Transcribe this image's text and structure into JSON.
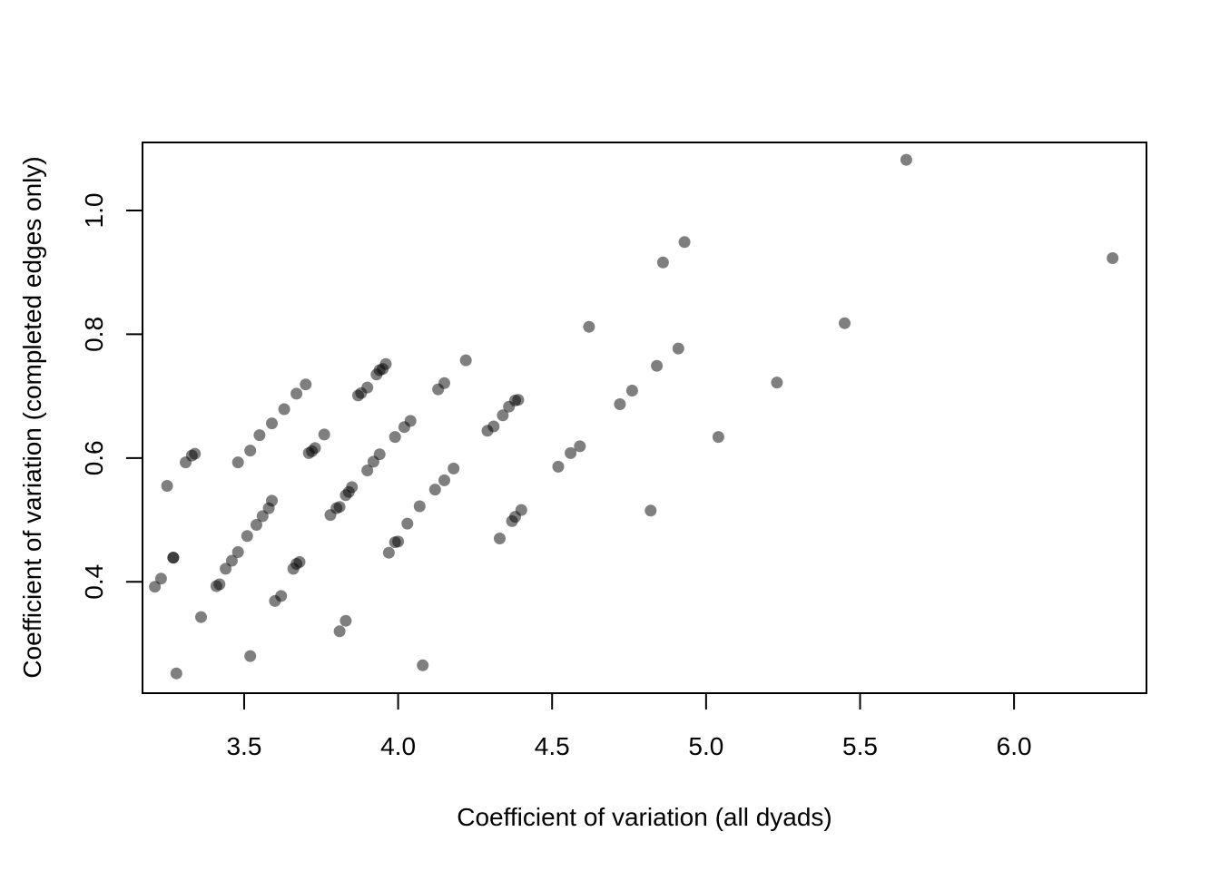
{
  "chart_data": {
    "type": "scatter",
    "title": "",
    "xlabel": "Coefficient of variation (all dyads)",
    "ylabel": "Coefficient of variation (completed edges only)",
    "xlim": [
      3.17,
      6.43
    ],
    "ylim": [
      0.22,
      1.11
    ],
    "x_ticks": [
      3.5,
      4.0,
      4.5,
      5.0,
      5.5,
      6.0
    ],
    "x_tick_labels": [
      "3.5",
      "4.0",
      "4.5",
      "5.0",
      "5.5",
      "6.0"
    ],
    "y_ticks": [
      0.4,
      0.6,
      0.8,
      1.0
    ],
    "y_tick_labels": [
      "0.4",
      "0.6",
      "0.8",
      "1.0"
    ],
    "grid": false,
    "legend": "none",
    "point_color": "#000000",
    "point_opacity": 0.5,
    "points": [
      {
        "x": 3.21,
        "y": 0.392
      },
      {
        "x": 3.23,
        "y": 0.405
      },
      {
        "x": 3.27,
        "y": 0.439
      },
      {
        "x": 3.27,
        "y": 0.439
      },
      {
        "x": 3.25,
        "y": 0.555
      },
      {
        "x": 3.31,
        "y": 0.593
      },
      {
        "x": 3.33,
        "y": 0.604
      },
      {
        "x": 3.34,
        "y": 0.607
      },
      {
        "x": 3.36,
        "y": 0.343
      },
      {
        "x": 3.28,
        "y": 0.252
      },
      {
        "x": 3.41,
        "y": 0.393
      },
      {
        "x": 3.42,
        "y": 0.396
      },
      {
        "x": 3.44,
        "y": 0.421
      },
      {
        "x": 3.46,
        "y": 0.434
      },
      {
        "x": 3.48,
        "y": 0.448
      },
      {
        "x": 3.51,
        "y": 0.474
      },
      {
        "x": 3.54,
        "y": 0.492
      },
      {
        "x": 3.56,
        "y": 0.506
      },
      {
        "x": 3.58,
        "y": 0.519
      },
      {
        "x": 3.59,
        "y": 0.531
      },
      {
        "x": 3.48,
        "y": 0.593
      },
      {
        "x": 3.52,
        "y": 0.612
      },
      {
        "x": 3.55,
        "y": 0.637
      },
      {
        "x": 3.59,
        "y": 0.656
      },
      {
        "x": 3.63,
        "y": 0.679
      },
      {
        "x": 3.67,
        "y": 0.704
      },
      {
        "x": 3.7,
        "y": 0.719
      },
      {
        "x": 3.52,
        "y": 0.28
      },
      {
        "x": 3.6,
        "y": 0.369
      },
      {
        "x": 3.62,
        "y": 0.377
      },
      {
        "x": 3.66,
        "y": 0.421
      },
      {
        "x": 3.67,
        "y": 0.429
      },
      {
        "x": 3.68,
        "y": 0.432
      },
      {
        "x": 3.71,
        "y": 0.608
      },
      {
        "x": 3.72,
        "y": 0.611
      },
      {
        "x": 3.73,
        "y": 0.616
      },
      {
        "x": 3.76,
        "y": 0.638
      },
      {
        "x": 3.78,
        "y": 0.508
      },
      {
        "x": 3.8,
        "y": 0.519
      },
      {
        "x": 3.81,
        "y": 0.521
      },
      {
        "x": 3.81,
        "y": 0.32
      },
      {
        "x": 3.83,
        "y": 0.337
      },
      {
        "x": 3.83,
        "y": 0.54
      },
      {
        "x": 3.84,
        "y": 0.545
      },
      {
        "x": 3.85,
        "y": 0.553
      },
      {
        "x": 3.87,
        "y": 0.701
      },
      {
        "x": 3.88,
        "y": 0.705
      },
      {
        "x": 3.9,
        "y": 0.714
      },
      {
        "x": 3.9,
        "y": 0.58
      },
      {
        "x": 3.92,
        "y": 0.594
      },
      {
        "x": 3.93,
        "y": 0.735
      },
      {
        "x": 3.94,
        "y": 0.742
      },
      {
        "x": 3.95,
        "y": 0.744
      },
      {
        "x": 3.96,
        "y": 0.752
      },
      {
        "x": 3.94,
        "y": 0.606
      },
      {
        "x": 3.97,
        "y": 0.447
      },
      {
        "x": 3.99,
        "y": 0.464
      },
      {
        "x": 4.0,
        "y": 0.465
      },
      {
        "x": 3.99,
        "y": 0.634
      },
      {
        "x": 4.02,
        "y": 0.65
      },
      {
        "x": 4.04,
        "y": 0.66
      },
      {
        "x": 4.03,
        "y": 0.494
      },
      {
        "x": 4.07,
        "y": 0.522
      },
      {
        "x": 4.08,
        "y": 0.265
      },
      {
        "x": 4.12,
        "y": 0.549
      },
      {
        "x": 4.13,
        "y": 0.711
      },
      {
        "x": 4.15,
        "y": 0.721
      },
      {
        "x": 4.15,
        "y": 0.564
      },
      {
        "x": 4.18,
        "y": 0.583
      },
      {
        "x": 4.22,
        "y": 0.758
      },
      {
        "x": 4.29,
        "y": 0.644
      },
      {
        "x": 4.31,
        "y": 0.651
      },
      {
        "x": 4.33,
        "y": 0.47
      },
      {
        "x": 4.34,
        "y": 0.669
      },
      {
        "x": 4.36,
        "y": 0.683
      },
      {
        "x": 4.37,
        "y": 0.498
      },
      {
        "x": 4.38,
        "y": 0.505
      },
      {
        "x": 4.38,
        "y": 0.693
      },
      {
        "x": 4.39,
        "y": 0.694
      },
      {
        "x": 4.4,
        "y": 0.516
      },
      {
        "x": 4.52,
        "y": 0.586
      },
      {
        "x": 4.56,
        "y": 0.608
      },
      {
        "x": 4.59,
        "y": 0.619
      },
      {
        "x": 4.62,
        "y": 0.812
      },
      {
        "x": 4.72,
        "y": 0.687
      },
      {
        "x": 4.76,
        "y": 0.709
      },
      {
        "x": 4.82,
        "y": 0.515
      },
      {
        "x": 4.84,
        "y": 0.749
      },
      {
        "x": 4.86,
        "y": 0.916
      },
      {
        "x": 4.91,
        "y": 0.777
      },
      {
        "x": 4.93,
        "y": 0.949
      },
      {
        "x": 5.04,
        "y": 0.634
      },
      {
        "x": 5.23,
        "y": 0.722
      },
      {
        "x": 5.45,
        "y": 0.818
      },
      {
        "x": 5.65,
        "y": 1.082
      },
      {
        "x": 6.32,
        "y": 0.923
      }
    ]
  }
}
